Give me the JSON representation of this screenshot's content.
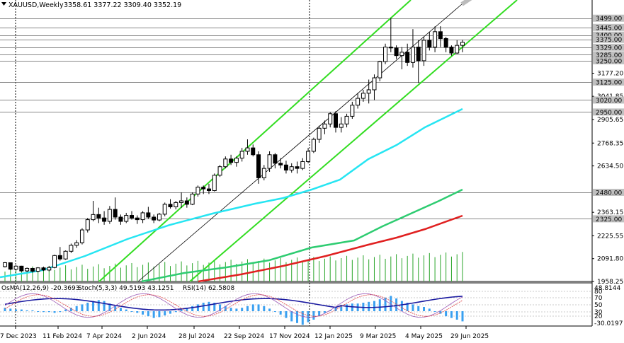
{
  "header": {
    "symbol": "XAUUSD,Weekly",
    "ohlc": "3358.61 3377.22 3309.40 3352.19"
  },
  "chart_data": {
    "type": "candlestick",
    "symbol": "XAUUSD",
    "timeframe": "Weekly",
    "ylim": [
      1958,
      3560
    ],
    "x_tick_labels": [
      "7 Dec 2023",
      "11 Feb 2024",
      "7 Apr 2024",
      "2 Jun 2024",
      "28 Jul 2024",
      "22 Sep 2024",
      "17 Nov 2024",
      "12 Jan 2025",
      "9 Mar 2025",
      "4 May 2025",
      "29 Jun 2025"
    ],
    "y_tick_labels": [
      {
        "v": 3177.2,
        "t": "3177.20"
      },
      {
        "v": 3041.85,
        "t": "3041.85"
      },
      {
        "v": 2905.65,
        "t": "2905.65"
      },
      {
        "v": 2768.35,
        "t": "2768.35"
      },
      {
        "v": 2634.5,
        "t": "2634.50"
      },
      {
        "v": 2363.15,
        "t": "2363.15"
      },
      {
        "v": 2225.55,
        "t": "2225.55"
      },
      {
        "v": 2091.8,
        "t": "2091.80"
      },
      {
        "v": 1958.25,
        "t": "1958.25"
      }
    ],
    "price_levels": [
      {
        "v": 3499,
        "t": "3499.00"
      },
      {
        "v": 3445,
        "t": "3445.00"
      },
      {
        "v": 3400,
        "t": "3400.00"
      },
      {
        "v": 3375,
        "t": "3375.00"
      },
      {
        "v": 3329,
        "t": "3329.00"
      },
      {
        "v": 3285,
        "t": "3285.00"
      },
      {
        "v": 3250,
        "t": "3250.00"
      },
      {
        "v": 3125,
        "t": "3125.00"
      },
      {
        "v": 3020,
        "t": "3020.00"
      },
      {
        "v": 2950,
        "t": "2950.00"
      },
      {
        "v": 2480,
        "t": "2480.00"
      },
      {
        "v": 2325,
        "t": "2325.00"
      }
    ],
    "candles": [
      [
        2045,
        2072,
        2040,
        2068
      ],
      [
        2068,
        2070,
        2025,
        2030
      ],
      [
        2030,
        2055,
        2022,
        2048
      ],
      [
        2048,
        2050,
        2015,
        2020
      ],
      [
        2020,
        2040,
        2012,
        2035
      ],
      [
        2035,
        2038,
        2010,
        2018
      ],
      [
        2018,
        2042,
        2012,
        2038
      ],
      [
        2038,
        2045,
        2020,
        2025
      ],
      [
        2025,
        2048,
        2018,
        2040
      ],
      [
        2040,
        2115,
        2035,
        2110
      ],
      [
        2110,
        2160,
        2080,
        2090
      ],
      [
        2090,
        2140,
        2085,
        2135
      ],
      [
        2135,
        2180,
        2125,
        2170
      ],
      [
        2170,
        2200,
        2155,
        2185
      ],
      [
        2185,
        2270,
        2175,
        2260
      ],
      [
        2260,
        2330,
        2245,
        2320
      ],
      [
        2320,
        2430,
        2310,
        2350
      ],
      [
        2350,
        2390,
        2300,
        2330
      ],
      [
        2330,
        2370,
        2290,
        2310
      ],
      [
        2310,
        2400,
        2295,
        2380
      ],
      [
        2380,
        2450,
        2320,
        2335
      ],
      [
        2335,
        2350,
        2290,
        2310
      ],
      [
        2310,
        2360,
        2300,
        2345
      ],
      [
        2345,
        2370,
        2320,
        2330
      ],
      [
        2330,
        2345,
        2295,
        2320
      ],
      [
        2320,
        2370,
        2300,
        2360
      ],
      [
        2360,
        2395,
        2325,
        2335
      ],
      [
        2335,
        2350,
        2300,
        2318
      ],
      [
        2318,
        2360,
        2310,
        2352
      ],
      [
        2352,
        2420,
        2340,
        2410
      ],
      [
        2410,
        2440,
        2385,
        2395
      ],
      [
        2395,
        2430,
        2380,
        2420
      ],
      [
        2420,
        2480,
        2390,
        2430
      ],
      [
        2430,
        2450,
        2390,
        2410
      ],
      [
        2410,
        2480,
        2405,
        2470
      ],
      [
        2470,
        2520,
        2455,
        2510
      ],
      [
        2510,
        2520,
        2470,
        2500
      ],
      [
        2500,
        2530,
        2470,
        2490
      ],
      [
        2490,
        2590,
        2485,
        2580
      ],
      [
        2580,
        2640,
        2570,
        2630
      ],
      [
        2630,
        2690,
        2620,
        2675
      ],
      [
        2675,
        2700,
        2640,
        2655
      ],
      [
        2655,
        2690,
        2630,
        2680
      ],
      [
        2680,
        2740,
        2660,
        2720
      ],
      [
        2720,
        2790,
        2700,
        2740
      ],
      [
        2740,
        2760,
        2690,
        2700
      ],
      [
        2700,
        2720,
        2530,
        2565
      ],
      [
        2565,
        2640,
        2550,
        2620
      ],
      [
        2620,
        2720,
        2600,
        2700
      ],
      [
        2700,
        2710,
        2620,
        2650
      ],
      [
        2650,
        2680,
        2620,
        2640
      ],
      [
        2640,
        2665,
        2590,
        2610
      ],
      [
        2610,
        2650,
        2595,
        2630
      ],
      [
        2630,
        2660,
        2590,
        2620
      ],
      [
        2620,
        2680,
        2610,
        2660
      ],
      [
        2660,
        2740,
        2650,
        2720
      ],
      [
        2720,
        2800,
        2710,
        2790
      ],
      [
        2790,
        2870,
        2770,
        2855
      ],
      [
        2855,
        2900,
        2820,
        2880
      ],
      [
        2880,
        2950,
        2860,
        2940
      ],
      [
        2940,
        2955,
        2830,
        2860
      ],
      [
        2860,
        2920,
        2830,
        2880
      ],
      [
        2880,
        2940,
        2860,
        2925
      ],
      [
        2925,
        3010,
        2910,
        2990
      ],
      [
        2990,
        3060,
        2970,
        3030
      ],
      [
        3030,
        3080,
        3010,
        3060
      ],
      [
        3060,
        3140,
        3000,
        3080
      ],
      [
        3080,
        3170,
        3020,
        3150
      ],
      [
        3150,
        3250,
        3130,
        3245
      ],
      [
        3245,
        3350,
        3230,
        3330
      ],
      [
        3330,
        3500,
        3300,
        3325
      ],
      [
        3325,
        3340,
        3260,
        3280
      ],
      [
        3280,
        3330,
        3200,
        3300
      ],
      [
        3300,
        3350,
        3220,
        3240
      ],
      [
        3240,
        3435,
        3210,
        3330
      ],
      [
        3330,
        3370,
        3120,
        3250
      ],
      [
        3250,
        3390,
        3220,
        3370
      ],
      [
        3370,
        3420,
        3310,
        3330
      ],
      [
        3330,
        3451,
        3300,
        3420
      ],
      [
        3420,
        3452,
        3330,
        3380
      ],
      [
        3380,
        3390,
        3300,
        3330
      ],
      [
        3330,
        3340,
        3280,
        3295
      ],
      [
        3295,
        3370,
        3290,
        3340
      ],
      [
        3340,
        3372,
        3300,
        3358
      ]
    ],
    "moving_averages": [
      {
        "name": "MA cyan",
        "color": "#26e5f2"
      },
      {
        "name": "MA green",
        "color": "#2ecc71"
      },
      {
        "name": "MA red",
        "color": "#e02020"
      }
    ],
    "subchart": {
      "osma_label": "OsMA(12,26,9) -20.3693",
      "stoch_label": "Stoch(5,3,3) 49.5193 43.1251",
      "rsi_label": "RSI(14) 62.5808",
      "y_top_label": "48.8144",
      "y_bottom_label": "-30.0197",
      "levels": [
        "80",
        "70",
        "50",
        "30",
        "20"
      ]
    }
  },
  "colors": {
    "background": "#ffffff",
    "grid": "#808080",
    "bull_candle": "#ffffff",
    "bear_candle": "#000000",
    "channel": "#33dd22",
    "osma_pos": "#3aa0f0",
    "osma_neg": "#3aa0f0",
    "volume": "#2aa52a",
    "rsi": "#1a1aa0",
    "stoch_main": "#9b59b6",
    "stoch_signal": "#e04040"
  }
}
